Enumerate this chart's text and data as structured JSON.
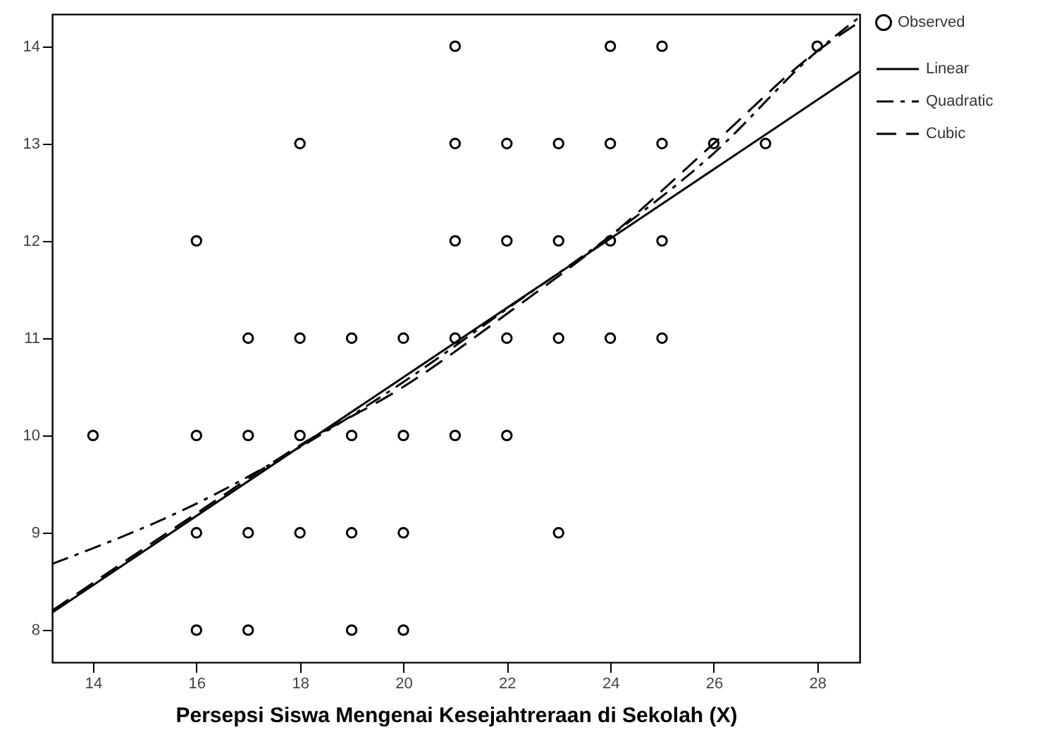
{
  "chart_data": {
    "type": "scatter",
    "xlabel": "Persepsi Siswa Mengenai Kesejahtreraan di Sekolah (X)",
    "xlim": [
      13.21,
      28.82
    ],
    "ylim": [
      7.67,
      14.33
    ],
    "xticks": [
      14,
      16,
      18,
      20,
      22,
      24,
      26,
      28
    ],
    "yticks": [
      8,
      9,
      10,
      11,
      12,
      13,
      14
    ],
    "grid": false,
    "legend": "top right",
    "series": [
      {
        "name": "Observed",
        "type": "scatter",
        "marker": "circle",
        "color": "#000000",
        "x": [
          14,
          16,
          16,
          16,
          16,
          17,
          17,
          17,
          17,
          18,
          18,
          18,
          18,
          19,
          19,
          19,
          19,
          20,
          20,
          20,
          20,
          21,
          21,
          21,
          21,
          21,
          22,
          22,
          22,
          22,
          23,
          23,
          23,
          23,
          24,
          24,
          24,
          24,
          25,
          25,
          25,
          25,
          26,
          27,
          28
        ],
        "values": [
          10,
          12,
          10,
          9,
          8,
          11,
          10,
          9,
          8,
          13,
          11,
          10,
          9,
          11,
          10,
          9,
          8,
          11,
          10,
          9,
          8,
          14,
          13,
          12,
          11,
          10,
          13,
          12,
          11,
          10,
          13,
          12,
          11,
          9,
          14,
          13,
          12,
          11,
          14,
          13,
          12,
          11,
          13,
          13,
          14
        ]
      },
      {
        "name": "Linear",
        "type": "line",
        "line_style": "solid",
        "color": "#000000",
        "x": [
          13.21,
          28.82
        ],
        "values": [
          8.18,
          13.74
        ]
      },
      {
        "name": "Quadratic",
        "type": "line",
        "line_style": "dashdot",
        "color": "#000000",
        "x": [
          13.21,
          16,
          18,
          20,
          22,
          24,
          26,
          28,
          28.82
        ],
        "values": [
          8.68,
          9.3,
          9.88,
          10.55,
          11.3,
          12.05,
          12.9,
          13.95,
          14.3
        ]
      },
      {
        "name": "Cubic",
        "type": "line",
        "line_style": "dashed",
        "color": "#000000",
        "x": [
          13.21,
          16,
          18,
          20,
          22,
          24,
          26,
          28,
          28.82
        ],
        "values": [
          8.2,
          9.2,
          9.9,
          10.5,
          11.25,
          12.05,
          13.0,
          13.95,
          14.25
        ]
      }
    ]
  }
}
